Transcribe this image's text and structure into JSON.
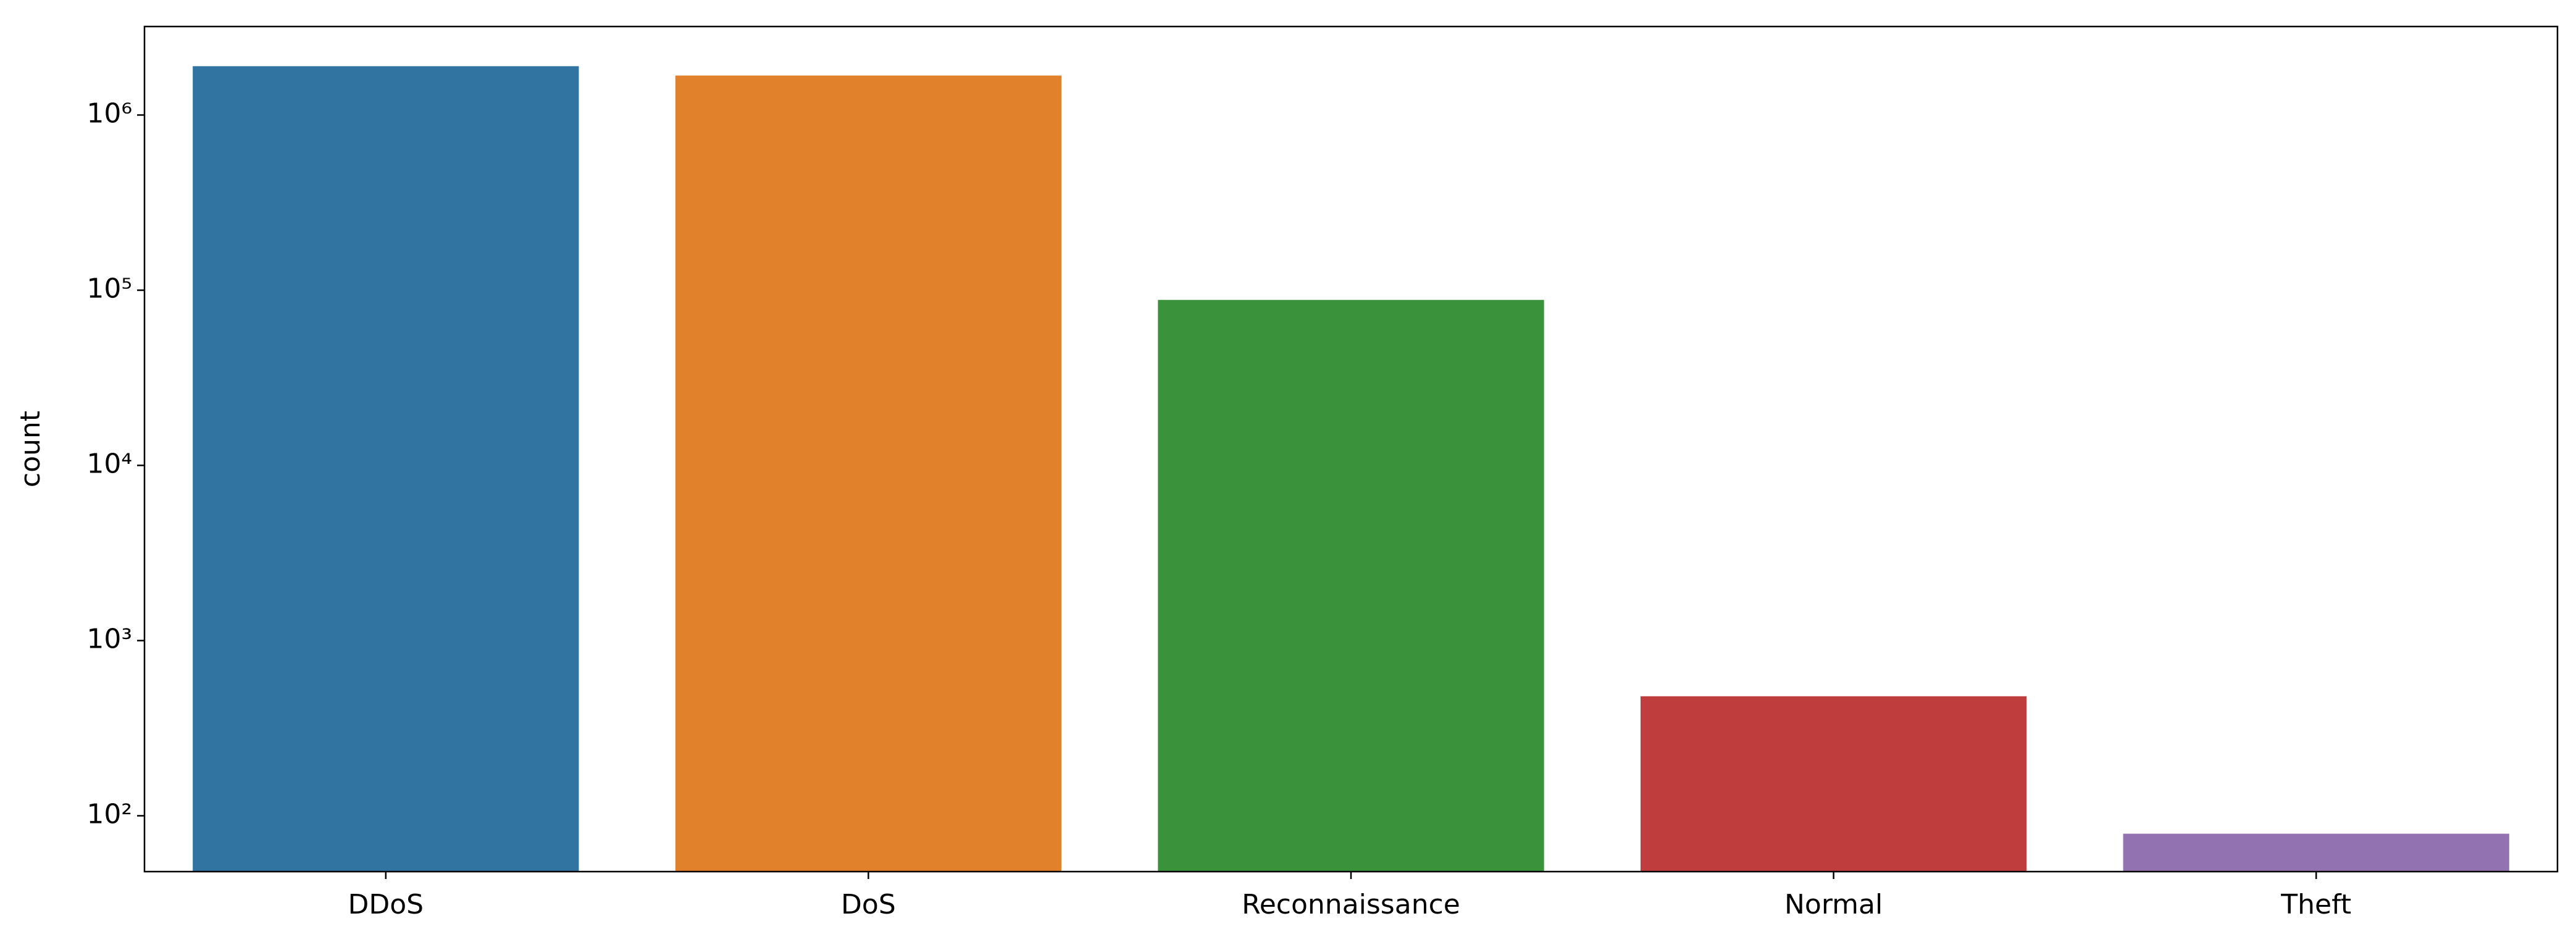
{
  "chart_data": {
    "type": "bar",
    "y_label": "count",
    "categories": [
      "DDoS",
      "DoS",
      "Reconnaissance",
      "Normal",
      "Theft"
    ],
    "values": [
      1900000,
      1680000,
      88000,
      481,
      79
    ],
    "colors": [
      "#3274a1",
      "#e1812c",
      "#3a923a",
      "#c03d3e",
      "#9372b2"
    ],
    "y_scale": "log",
    "ylim": [
      48,
      3200000
    ],
    "yticks": [
      {
        "value": 100,
        "label": "10²"
      },
      {
        "value": 1000,
        "label": "10³"
      },
      {
        "value": 10000,
        "label": "10⁴"
      },
      {
        "value": 100000,
        "label": "10⁵"
      },
      {
        "value": 1000000,
        "label": "10⁶"
      }
    ],
    "grid": false
  }
}
